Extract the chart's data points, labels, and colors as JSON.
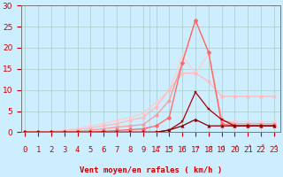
{
  "bg_color": "#cceeff",
  "grid_color": "#aacccc",
  "xlabel": "Vent moyen/en rafales ( km/h )",
  "ylim": [
    0,
    30
  ],
  "yticks": [
    0,
    5,
    10,
    15,
    20,
    25,
    30
  ],
  "font_color": "#cc0000",
  "tick_fontsize": 6.5,
  "series": [
    {
      "x_real": [
        0,
        1,
        2,
        3,
        4,
        5,
        6,
        7,
        8,
        9,
        14,
        15,
        16,
        17,
        18,
        19,
        20,
        21,
        22,
        23
      ],
      "y": [
        0,
        0,
        0,
        0,
        0,
        0,
        0,
        0,
        0,
        0,
        0,
        0.5,
        1.5,
        3.0,
        1.5,
        1.5,
        1.5,
        1.5,
        1.5,
        1.5
      ],
      "color": "#880000",
      "lw": 0.9,
      "marker": "^",
      "ms": 2.5
    },
    {
      "x_real": [
        0,
        1,
        2,
        3,
        4,
        5,
        6,
        7,
        8,
        9,
        14,
        15,
        16,
        17,
        18,
        19,
        20,
        21,
        22,
        23
      ],
      "y": [
        0,
        0,
        0,
        0,
        0,
        0,
        0,
        0,
        0,
        0,
        0,
        0.5,
        2.5,
        9.5,
        5.5,
        3.0,
        1.5,
        1.5,
        1.5,
        1.5
      ],
      "color": "#aa0000",
      "lw": 0.9,
      "marker": "s",
      "ms": 2.0
    },
    {
      "x_real": [
        0,
        1,
        2,
        3,
        4,
        5,
        6,
        7,
        8,
        9,
        14,
        15,
        16,
        17,
        18,
        19,
        20,
        21,
        22,
        23
      ],
      "y": [
        0,
        0,
        0,
        0,
        0,
        0,
        0.2,
        0.4,
        0.6,
        0.8,
        1.5,
        3.5,
        16.5,
        26.5,
        19.0,
        2.0,
        1.5,
        1.5,
        1.5,
        1.5
      ],
      "color": "#ff6666",
      "lw": 0.9,
      "marker": "D",
      "ms": 2.5
    },
    {
      "x_real": [
        0,
        1,
        2,
        3,
        4,
        5,
        6,
        7,
        8,
        9,
        14,
        15,
        16,
        17,
        18,
        19,
        20,
        21,
        22,
        23
      ],
      "y": [
        0,
        0,
        0,
        0,
        0.2,
        0.5,
        0.8,
        1.2,
        1.5,
        1.8,
        4.0,
        7.5,
        16.5,
        26.5,
        19.0,
        3.0,
        2.0,
        2.0,
        2.0,
        2.0
      ],
      "color": "#ff9999",
      "lw": 0.9,
      "marker": "o",
      "ms": 2.5
    },
    {
      "x_real": [
        0,
        1,
        2,
        3,
        4,
        5,
        6,
        7,
        8,
        9,
        14,
        15,
        16,
        17,
        18,
        19,
        20,
        21,
        22,
        23
      ],
      "y": [
        0,
        0,
        0,
        0.3,
        0.6,
        1.0,
        1.5,
        2.0,
        2.8,
        3.5,
        6.0,
        10.0,
        14.0,
        14.0,
        12.0,
        8.5,
        8.5,
        8.5,
        8.5,
        8.5
      ],
      "color": "#ffbbbb",
      "lw": 0.9,
      "marker": "o",
      "ms": 2.5
    },
    {
      "x_real": [
        0,
        1,
        2,
        3,
        4,
        5,
        6,
        7,
        8,
        9,
        14,
        15,
        16,
        17,
        18,
        19,
        20,
        21,
        22,
        23
      ],
      "y": [
        0,
        0,
        0.2,
        0.5,
        0.8,
        1.5,
        2.0,
        2.8,
        3.5,
        4.5,
        7.0,
        10.0,
        18.0,
        14.0,
        18.5,
        2.5,
        2.5,
        2.5,
        2.5,
        2.5
      ],
      "color": "#ffcccc",
      "lw": 0.9,
      "marker": "o",
      "ms": 2.5
    }
  ],
  "left_xtick_vals": [
    0,
    1,
    2,
    3,
    4,
    5,
    6,
    7,
    8,
    9
  ],
  "right_xtick_vals": [
    14,
    15,
    16,
    17,
    18,
    19,
    20,
    21,
    22,
    23
  ],
  "arrow_chars": [
    "↗",
    "↗",
    "↗",
    "↗",
    "↗",
    "↗",
    "↗",
    "↗",
    "↗",
    "↗"
  ]
}
